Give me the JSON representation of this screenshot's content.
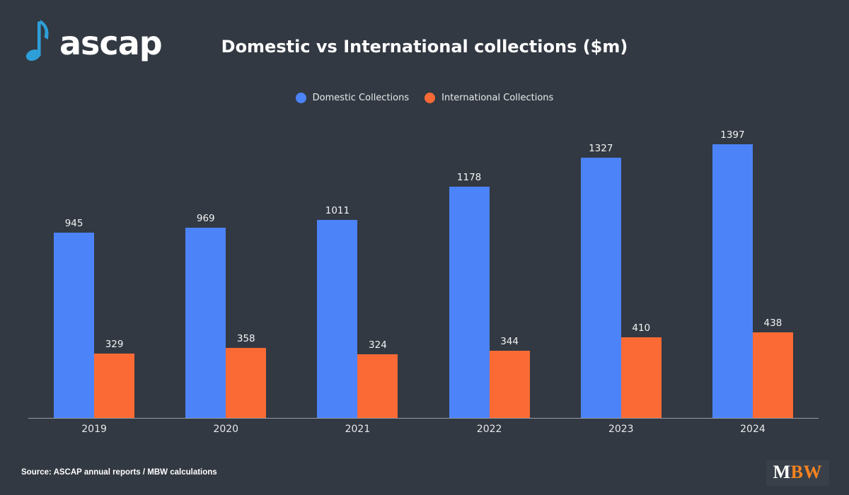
{
  "page": {
    "background": "#323942"
  },
  "header": {
    "logo_text": "ascap",
    "logo_note_color": "#2e9fd8",
    "title": "Domestic vs International collections ($m)"
  },
  "legend": [
    {
      "label": "Domestic Collections",
      "color": "#4c83f8"
    },
    {
      "label": "International Collections",
      "color": "#fb6a35"
    }
  ],
  "chart_data": {
    "type": "bar",
    "categories": [
      "2019",
      "2020",
      "2021",
      "2022",
      "2023",
      "2024"
    ],
    "series": [
      {
        "name": "Domestic Collections",
        "color": "#4c83f8",
        "values": [
          945,
          969,
          1011,
          1178,
          1327,
          1397
        ]
      },
      {
        "name": "International Collections",
        "color": "#fb6a35",
        "values": [
          329,
          358,
          324,
          344,
          410,
          438
        ]
      }
    ],
    "title": "Domestic vs International collections ($m)",
    "xlabel": "",
    "ylabel": "",
    "ylim": [
      0,
      1500
    ],
    "grid": false,
    "value_labels": true,
    "legend_position": "top-center"
  },
  "footer": {
    "source": "Source: ASCAP annual reports / MBW calculations",
    "brand_m": "M",
    "brand_bw": "BW",
    "brand_accent": "#f58220"
  }
}
